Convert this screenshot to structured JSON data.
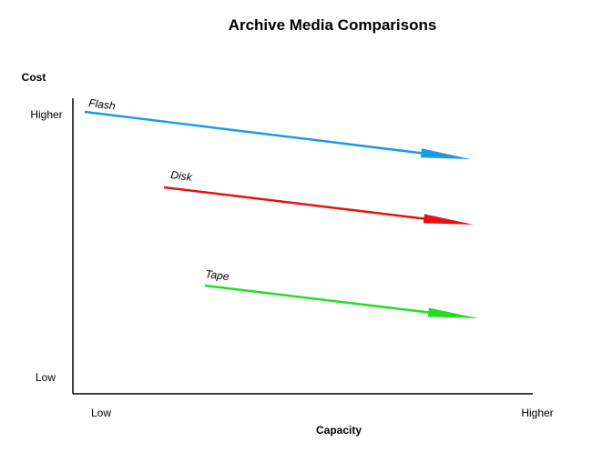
{
  "title": "Archive Media Comparisons",
  "y_axis": {
    "label": "Cost",
    "high": "Higher",
    "low": "Low"
  },
  "x_axis": {
    "label": "Capacity",
    "low": "Low",
    "high": "Higher"
  },
  "arrows": [
    {
      "label": "Flash"
    },
    {
      "label": "Disk"
    },
    {
      "label": "Tape"
    }
  ]
}
